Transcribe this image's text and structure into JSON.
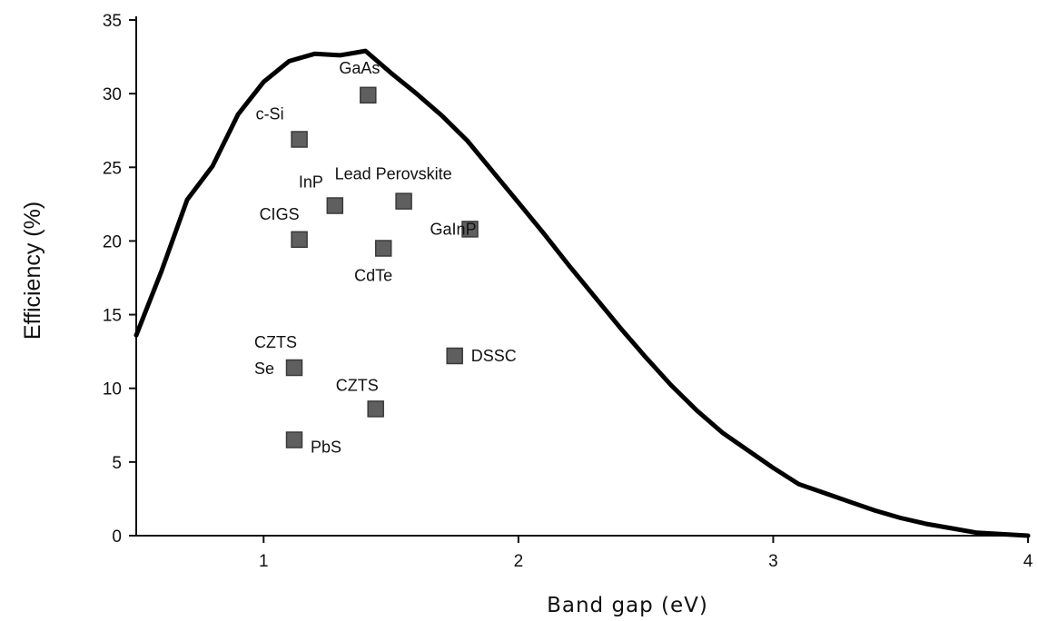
{
  "chart_data": {
    "type": "line",
    "title": "",
    "xlabel": "Band gap (eV)",
    "ylabel": "Efficiency (%)",
    "xlim": [
      0.5,
      4
    ],
    "ylim": [
      0,
      35
    ],
    "x_ticks": [
      1,
      2,
      3,
      4
    ],
    "y_ticks": [
      0,
      5,
      10,
      15,
      20,
      25,
      30,
      35
    ],
    "grid": false,
    "limit_curve": {
      "x": [
        0.5,
        0.6,
        0.7,
        0.8,
        0.9,
        1.0,
        1.1,
        1.2,
        1.3,
        1.4,
        1.5,
        1.6,
        1.7,
        1.8,
        1.9,
        2.0,
        2.1,
        2.2,
        2.3,
        2.4,
        2.5,
        2.6,
        2.7,
        2.8,
        2.9,
        3.0,
        3.1,
        3.2,
        3.3,
        3.4,
        3.5,
        3.6,
        3.7,
        3.8,
        3.9,
        4.0
      ],
      "y": [
        13.6,
        18.0,
        22.8,
        25.1,
        28.6,
        30.8,
        32.2,
        32.7,
        32.6,
        32.9,
        31.4,
        30.0,
        28.5,
        26.8,
        24.7,
        22.6,
        20.5,
        18.3,
        16.2,
        14.1,
        12.1,
        10.2,
        8.5,
        7.0,
        5.8,
        4.6,
        3.5,
        2.9,
        2.3,
        1.7,
        1.2,
        0.8,
        0.5,
        0.2,
        0.1,
        0.0
      ]
    },
    "points": [
      {
        "label": "GaAs",
        "x": 1.41,
        "y": 29.9
      },
      {
        "label": "c-Si",
        "x": 1.14,
        "y": 26.9
      },
      {
        "label": "Lead Perovskite",
        "x": 1.55,
        "y": 22.7
      },
      {
        "label": "InP",
        "x": 1.28,
        "y": 22.4
      },
      {
        "label": "GaInP",
        "x": 1.81,
        "y": 20.8
      },
      {
        "label": "CIGS",
        "x": 1.14,
        "y": 20.1
      },
      {
        "label": "CdTe",
        "x": 1.47,
        "y": 19.5
      },
      {
        "label": "DSSC",
        "x": 1.75,
        "y": 12.2
      },
      {
        "label": "CZTS Se",
        "lines": [
          "CZTS",
          "Se"
        ],
        "x": 1.12,
        "y": 11.4
      },
      {
        "label": "CZTS",
        "x": 1.44,
        "y": 8.6
      },
      {
        "label": "PbS",
        "x": 1.12,
        "y": 6.5
      }
    ],
    "marker_color": "#5f5f5f",
    "curve_color": "#000000"
  }
}
